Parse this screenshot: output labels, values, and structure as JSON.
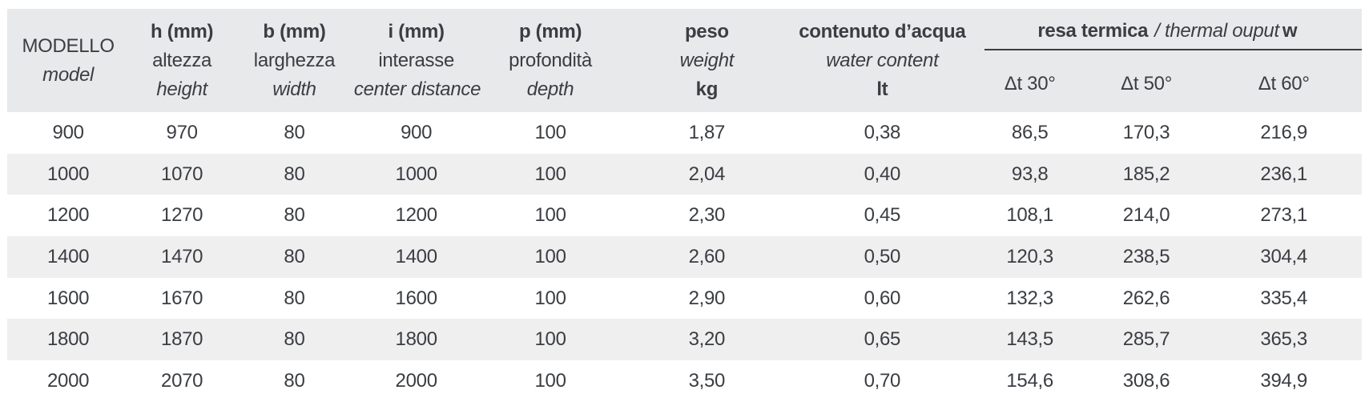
{
  "table": {
    "header": {
      "modello": {
        "title": "MODELLO",
        "subtitle": "model"
      },
      "dims": [
        {
          "code": "h (mm)",
          "it": "altezza",
          "en": "height"
        },
        {
          "code": "b (mm)",
          "it": "larghezza",
          "en": "width"
        },
        {
          "code": "i (mm)",
          "it": "interasse",
          "en": "center distance"
        },
        {
          "code": "p (mm)",
          "it": "profondità",
          "en": "depth"
        }
      ],
      "peso": {
        "code": "peso",
        "en": "weight",
        "unit": "kg"
      },
      "acqua": {
        "code": "contenuto d’acqua",
        "en": "water content",
        "unit": "lt"
      },
      "resa": {
        "title": "resa termica",
        "title_en": "/ thermal ouput",
        "unit": "w",
        "subcols": [
          "Δt 30°",
          "Δt 50°",
          "Δt 60°"
        ]
      }
    },
    "rows": [
      [
        "900",
        "970",
        "80",
        "900",
        "100",
        "1,87",
        "0,38",
        "86,5",
        "170,3",
        "216,9"
      ],
      [
        "1000",
        "1070",
        "80",
        "1000",
        "100",
        "2,04",
        "0,40",
        "93,8",
        "185,2",
        "236,1"
      ],
      [
        "1200",
        "1270",
        "80",
        "1200",
        "100",
        "2,30",
        "0,45",
        "108,1",
        "214,0",
        "273,1"
      ],
      [
        "1400",
        "1470",
        "80",
        "1400",
        "100",
        "2,60",
        "0,50",
        "120,3",
        "238,5",
        "304,4"
      ],
      [
        "1600",
        "1670",
        "80",
        "1600",
        "100",
        "2,90",
        "0,60",
        "132,3",
        "262,6",
        "335,4"
      ],
      [
        "1800",
        "1870",
        "80",
        "1800",
        "100",
        "3,20",
        "0,65",
        "143,5",
        "285,7",
        "365,3"
      ],
      [
        "2000",
        "2070",
        "80",
        "2000",
        "100",
        "3,50",
        "0,70",
        "154,6",
        "308,6",
        "394,9"
      ]
    ]
  },
  "colors": {
    "header_bg": "#e8e9ea",
    "zebra_bg": "#efeff0",
    "text": "#3a3d42"
  }
}
